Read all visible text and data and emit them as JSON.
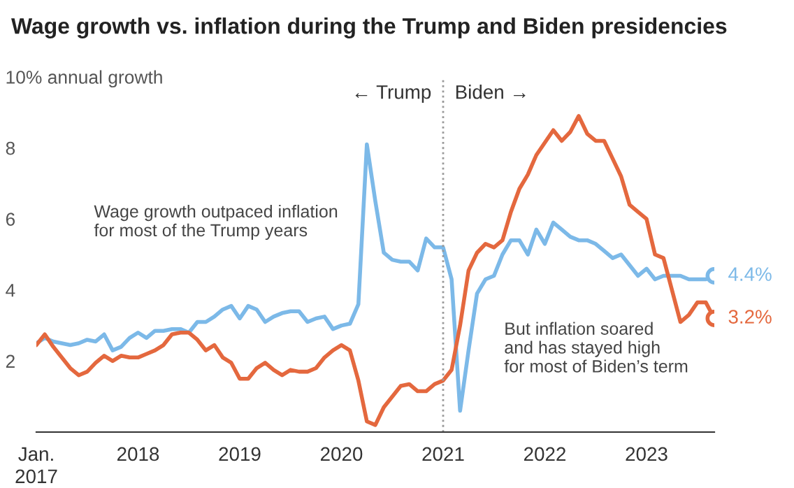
{
  "chart_data": {
    "type": "line",
    "title": "Wage growth vs. inflation during the Trump and Biden presidencies",
    "x": [
      "2017-01",
      "2017-02",
      "2017-03",
      "2017-04",
      "2017-05",
      "2017-06",
      "2017-07",
      "2017-08",
      "2017-09",
      "2017-10",
      "2017-11",
      "2017-12",
      "2018-01",
      "2018-02",
      "2018-03",
      "2018-04",
      "2018-05",
      "2018-06",
      "2018-07",
      "2018-08",
      "2018-09",
      "2018-10",
      "2018-11",
      "2018-12",
      "2019-01",
      "2019-02",
      "2019-03",
      "2019-04",
      "2019-05",
      "2019-06",
      "2019-07",
      "2019-08",
      "2019-09",
      "2019-10",
      "2019-11",
      "2019-12",
      "2020-01",
      "2020-02",
      "2020-03",
      "2020-04",
      "2020-05",
      "2020-06",
      "2020-07",
      "2020-08",
      "2020-09",
      "2020-10",
      "2020-11",
      "2020-12",
      "2021-01",
      "2021-02",
      "2021-03",
      "2021-04",
      "2021-05",
      "2021-06",
      "2021-07",
      "2021-08",
      "2021-09",
      "2021-10",
      "2021-11",
      "2021-12",
      "2022-01",
      "2022-02",
      "2022-03",
      "2022-04",
      "2022-05",
      "2022-06",
      "2022-07",
      "2022-08",
      "2022-09",
      "2022-10",
      "2022-11",
      "2022-12",
      "2023-01",
      "2023-02",
      "2023-03",
      "2023-04",
      "2023-05",
      "2023-06",
      "2023-07",
      "2023-08",
      "2023-09"
    ],
    "xlim": [
      "2017-01",
      "2023-09"
    ],
    "xticks": [
      {
        "value": "2017-01",
        "label": "Jan.\n2017"
      },
      {
        "value": "2018-01",
        "label": "2018"
      },
      {
        "value": "2019-01",
        "label": "2019"
      },
      {
        "value": "2020-01",
        "label": "2020"
      },
      {
        "value": "2021-01",
        "label": "2021"
      },
      {
        "value": "2022-01",
        "label": "2022"
      },
      {
        "value": "2023-01",
        "label": "2023"
      }
    ],
    "ylim": [
      0,
      10
    ],
    "yticks": [
      2,
      4,
      6,
      8,
      {
        "value": 10,
        "label": "10% annual growth"
      }
    ],
    "grid": false,
    "legend": false,
    "series": [
      {
        "color": "#7cb9e8",
        "values": [
          2.5,
          2.65,
          2.55,
          2.5,
          2.45,
          2.5,
          2.6,
          2.55,
          2.75,
          2.3,
          2.4,
          2.65,
          2.8,
          2.65,
          2.85,
          2.85,
          2.9,
          2.9,
          2.8,
          3.1,
          3.1,
          3.25,
          3.45,
          3.55,
          3.2,
          3.55,
          3.45,
          3.1,
          3.25,
          3.35,
          3.4,
          3.4,
          3.1,
          3.2,
          3.25,
          2.9,
          3.0,
          3.05,
          3.6,
          8.1,
          6.5,
          5.05,
          4.85,
          4.8,
          4.8,
          4.55,
          5.45,
          5.2,
          5.2,
          4.3,
          0.6,
          2.3,
          3.9,
          4.3,
          4.4,
          5.0,
          5.4,
          5.4,
          5.0,
          5.7,
          5.3,
          5.9,
          5.7,
          5.5,
          5.4,
          5.4,
          5.3,
          5.1,
          4.9,
          5.0,
          4.7,
          4.4,
          4.6,
          4.3,
          4.4,
          4.4,
          4.4,
          4.3,
          4.3,
          4.3,
          4.4
        ],
        "value_labels": [
          null,
          null,
          null,
          null,
          null,
          null,
          null,
          null,
          null,
          null,
          null,
          null,
          null,
          null,
          null,
          null,
          null,
          null,
          null,
          null,
          null,
          null,
          null,
          null,
          null,
          null,
          null,
          null,
          null,
          null,
          null,
          null,
          null,
          null,
          null,
          null,
          null,
          null,
          null,
          null,
          null,
          null,
          null,
          null,
          null,
          null,
          null,
          null,
          null,
          null,
          null,
          null,
          null,
          null,
          null,
          null,
          null,
          null,
          null,
          null,
          null,
          null,
          null,
          null,
          null,
          null,
          null,
          null,
          null,
          null,
          null,
          null,
          null,
          null,
          null,
          null,
          null,
          null,
          null,
          null,
          "4.4%"
        ]
      },
      {
        "color": "#e4683e",
        "values": [
          2.45,
          2.75,
          2.4,
          2.1,
          1.8,
          1.6,
          1.7,
          1.95,
          2.15,
          2.0,
          2.15,
          2.1,
          2.1,
          2.2,
          2.3,
          2.45,
          2.75,
          2.8,
          2.8,
          2.6,
          2.3,
          2.45,
          2.1,
          1.95,
          1.5,
          1.5,
          1.8,
          1.95,
          1.75,
          1.6,
          1.75,
          1.7,
          1.7,
          1.8,
          2.1,
          2.3,
          2.45,
          2.3,
          1.45,
          0.3,
          0.2,
          0.7,
          1.0,
          1.3,
          1.35,
          1.15,
          1.15,
          1.35,
          1.45,
          1.75,
          3.0,
          4.55,
          5.05,
          5.3,
          5.2,
          5.4,
          6.2,
          6.85,
          7.25,
          7.8,
          8.15,
          8.5,
          8.2,
          8.45,
          8.9,
          8.4,
          8.2,
          8.2,
          7.7,
          7.2,
          6.4,
          6.2,
          6.0,
          5.0,
          4.9,
          4.0,
          3.1,
          3.3,
          3.65,
          3.65,
          3.2
        ],
        "value_labels": [
          null,
          null,
          null,
          null,
          null,
          null,
          null,
          null,
          null,
          null,
          null,
          null,
          null,
          null,
          null,
          null,
          null,
          null,
          null,
          null,
          null,
          null,
          null,
          null,
          null,
          null,
          null,
          null,
          null,
          null,
          null,
          null,
          null,
          null,
          null,
          null,
          null,
          null,
          null,
          null,
          null,
          null,
          null,
          null,
          null,
          null,
          null,
          null,
          null,
          null,
          null,
          null,
          null,
          null,
          null,
          null,
          null,
          null,
          null,
          null,
          null,
          null,
          null,
          null,
          null,
          null,
          null,
          null,
          null,
          null,
          null,
          null,
          null,
          null,
          null,
          null,
          null,
          null,
          null,
          null,
          "3.2%"
        ]
      }
    ],
    "ref_lines": [
      {
        "axis": "x",
        "value": "2021-01",
        "line_style": "dotted",
        "color": "#999999"
      }
    ],
    "annotations": [
      "← Trump",
      "Biden →",
      "Wage growth outpaced inflation\nfor most of the Trump years",
      "But inflation soared\nand has stayed high\nfor most of Biden’s term"
    ]
  }
}
